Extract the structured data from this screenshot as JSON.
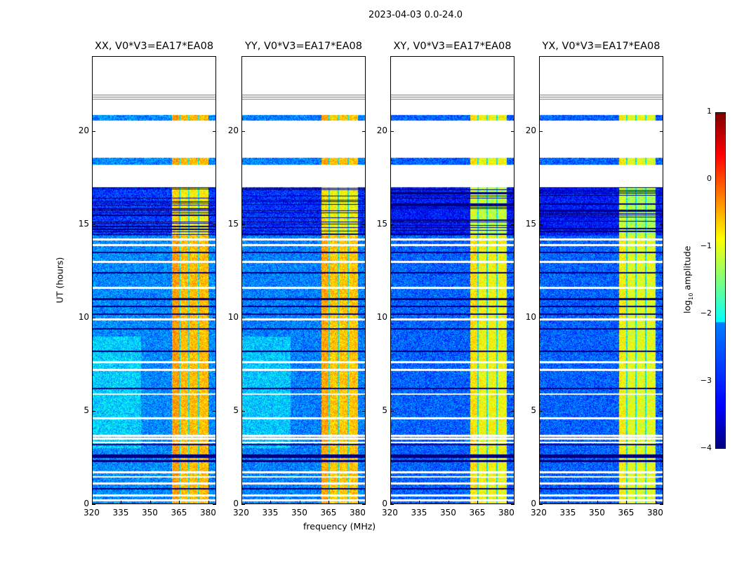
{
  "suptitle": "2023-04-03 0.0-24.0",
  "chart_data": {
    "type": "heatmap",
    "title": "2023-04-03 0.0-24.0",
    "xlabel": "frequency (MHz)",
    "ylabel": "UT (hours)",
    "xlim": [
      320,
      384
    ],
    "ylim": [
      0,
      24
    ],
    "xticks": [
      "320",
      "335",
      "350",
      "365",
      "380"
    ],
    "xtick_values": [
      320,
      335,
      350,
      365,
      380
    ],
    "yticks": [
      "0",
      "5",
      "10",
      "15",
      "20"
    ],
    "ytick_values": [
      0,
      5,
      10,
      15,
      20
    ],
    "colorbar": {
      "label": "log10 amplitude",
      "label_main": "log",
      "label_sub": "10",
      "label_rest": " amplitude",
      "range": [
        -4,
        1
      ],
      "ticks": [
        "1",
        "0",
        "−1",
        "−2",
        "−3",
        "−4"
      ],
      "tick_values": [
        1,
        0,
        -1,
        -2,
        -3,
        -4
      ],
      "colormap": "jet"
    },
    "panels": [
      {
        "title": "XX, V0*V3=EA17*EA08",
        "band_level": -0.55,
        "background_level": -2.7
      },
      {
        "title": "YY, V0*V3=EA17*EA08",
        "band_level": -0.6,
        "background_level": -2.75
      },
      {
        "title": "XY, V0*V3=EA17*EA08",
        "band_level": -0.9,
        "background_level": -2.9
      },
      {
        "title": "YX, V0*V3=EA17*EA08",
        "band_level": -1.0,
        "background_level": -2.9
      }
    ],
    "rfi_band_mhz": [
      361,
      380
    ],
    "rfi_band_dividers_mhz": [
      365,
      370,
      375
    ],
    "time_segments_hours": [
      {
        "start": 0,
        "end": 14.4,
        "state": "data"
      },
      {
        "start": 14.4,
        "end": 17.0,
        "state": "data-low"
      },
      {
        "start": 17.0,
        "end": 18.2,
        "state": "flagged"
      },
      {
        "start": 18.2,
        "end": 18.6,
        "state": "data"
      },
      {
        "start": 18.6,
        "end": 20.6,
        "state": "flagged"
      },
      {
        "start": 20.6,
        "end": 20.9,
        "state": "data"
      },
      {
        "start": 20.9,
        "end": 21.7,
        "state": "flagged"
      },
      {
        "start": 21.7,
        "end": 22.0,
        "state": "partial"
      },
      {
        "start": 22.0,
        "end": 24.0,
        "state": "flagged"
      }
    ],
    "flagged_rows_hours": [
      0.2,
      0.45,
      1.1,
      1.45,
      1.7,
      3.3,
      3.5,
      3.65,
      4.6,
      5.9,
      7.2,
      7.6,
      9.9,
      11.6,
      13.0,
      13.9,
      14.2
    ],
    "low_rows_hours": [
      0.8,
      2.3,
      2.5,
      2.6,
      3.2,
      6.2,
      8.2,
      9.4,
      10.2,
      10.6,
      11.0,
      12.4,
      13.5
    ]
  }
}
